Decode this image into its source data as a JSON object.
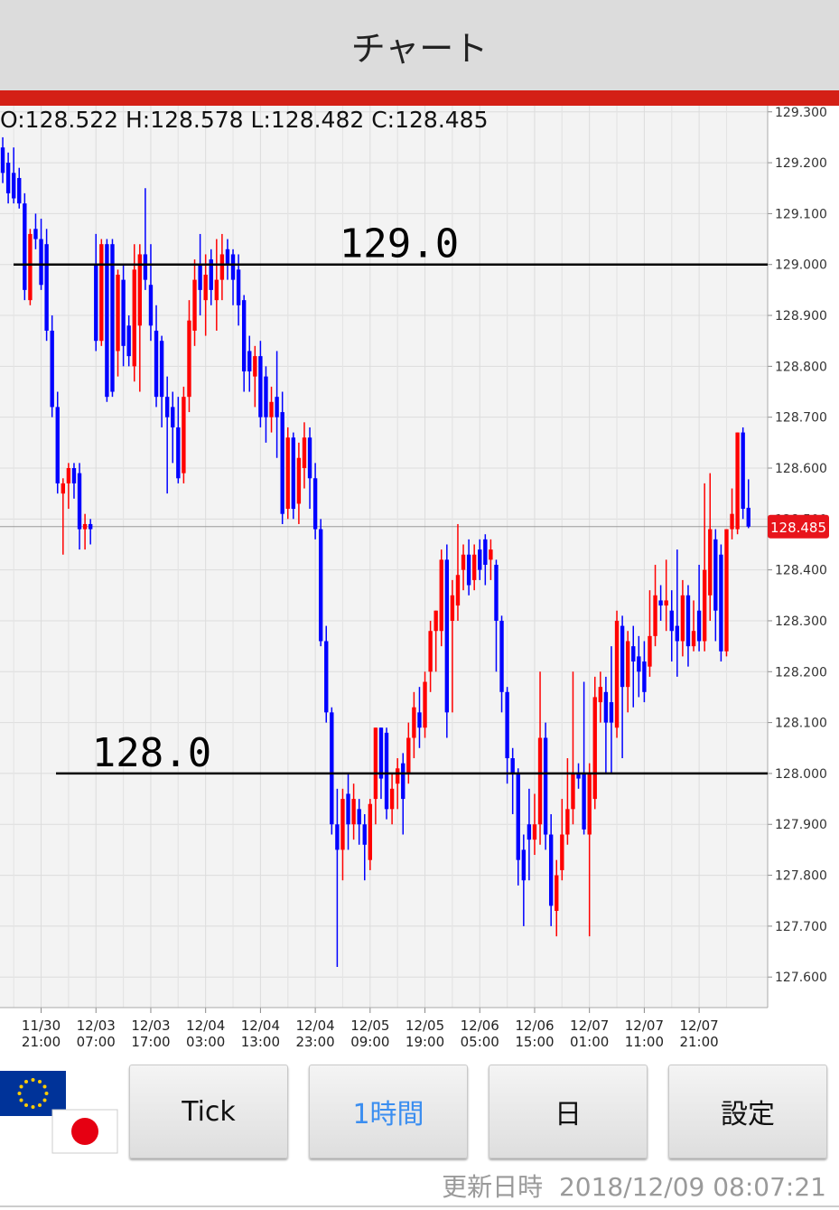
{
  "header": {
    "title": "チャート"
  },
  "ohlc_text": "O:128.522 H:128.578 L:128.482 C:128.485",
  "buttons": [
    "Tick",
    "1時間",
    "日",
    "設定"
  ],
  "active_button": 1,
  "footer": {
    "label": "更新日時",
    "timestamp": "2018/12/09 08:07:21"
  },
  "chart_data": {
    "type": "candlestick",
    "up_color": "#ff0000",
    "down_color": "#0000ff",
    "xlim": [
      -0.5,
      139.5
    ],
    "xticks": [
      {
        "value": 7,
        "label": "11/30 21:00"
      },
      {
        "value": 17,
        "label": "12/03 07:00"
      },
      {
        "value": 27,
        "label": "12/03 17:00"
      },
      {
        "value": 37,
        "label": "12/04 03:00"
      },
      {
        "value": 47,
        "label": "12/04 13:00"
      },
      {
        "value": 57,
        "label": "12/04 23:00"
      },
      {
        "value": 67,
        "label": "12/05 09:00"
      },
      {
        "value": 77,
        "label": "12/05 19:00"
      },
      {
        "value": 87,
        "label": "12/06 05:00"
      },
      {
        "value": 97,
        "label": "12/06 15:00"
      },
      {
        "value": 107,
        "label": "12/07 01:00"
      },
      {
        "value": 117,
        "label": "12/07 11:00"
      },
      {
        "value": 127,
        "label": "12/07 21:00"
      }
    ],
    "ylim": [
      127.54,
      129.312
    ],
    "yticks": [
      {
        "value": 127.6,
        "label": "127.600"
      },
      {
        "value": 127.7,
        "label": "127.700"
      },
      {
        "value": 127.8,
        "label": "127.800"
      },
      {
        "value": 127.9,
        "label": "127.900"
      },
      {
        "value": 128.0,
        "label": "128.000"
      },
      {
        "value": 128.1,
        "label": "128.100"
      },
      {
        "value": 128.2,
        "label": "128.200"
      },
      {
        "value": 128.3,
        "label": "128.300"
      },
      {
        "value": 128.4,
        "label": "128.400"
      },
      {
        "value": 128.5,
        "label": "128.500"
      },
      {
        "value": 128.6,
        "label": "128.600"
      },
      {
        "value": 128.7,
        "label": "128.700"
      },
      {
        "value": 128.8,
        "label": "128.800"
      },
      {
        "value": 128.9,
        "label": "128.900"
      },
      {
        "value": 129.0,
        "label": "129.000"
      },
      {
        "value": 129.1,
        "label": "129.100"
      },
      {
        "value": 129.2,
        "label": "129.200"
      },
      {
        "value": 129.3,
        "label": "129.300"
      }
    ],
    "grid": true,
    "hlines": [
      {
        "value": 129.0,
        "label": "129.0"
      },
      {
        "value": 128.0,
        "label": "128.0"
      }
    ],
    "last_price": 128.485,
    "candles": [
      [
        129.23,
        129.25,
        129.16,
        129.18
      ],
      [
        129.2,
        129.22,
        129.12,
        129.14
      ],
      [
        129.18,
        129.23,
        129.12,
        129.13
      ],
      [
        129.17,
        129.19,
        129.11,
        129.12
      ],
      [
        129.12,
        129.14,
        128.93,
        128.95
      ],
      [
        128.93,
        129.07,
        128.92,
        129.06
      ],
      [
        129.07,
        129.1,
        129.03,
        129.05
      ],
      [
        129.05,
        129.09,
        128.95,
        128.96
      ],
      [
        129.04,
        129.07,
        128.85,
        128.87
      ],
      [
        128.87,
        128.9,
        128.7,
        128.72
      ],
      [
        128.72,
        128.75,
        128.55,
        128.57
      ],
      [
        128.55,
        128.58,
        128.43,
        128.57
      ],
      [
        128.57,
        128.61,
        128.52,
        128.6
      ],
      [
        128.6,
        128.61,
        128.54,
        128.57
      ],
      [
        128.59,
        128.61,
        128.44,
        128.48
      ],
      [
        128.48,
        128.51,
        128.44,
        128.49
      ],
      [
        128.49,
        128.5,
        128.45,
        128.48
      ],
      [
        129.0,
        129.06,
        128.83,
        128.85
      ],
      [
        128.85,
        129.05,
        128.84,
        129.04
      ],
      [
        129.04,
        129.05,
        128.73,
        128.74
      ],
      [
        129.04,
        129.05,
        128.74,
        128.75
      ],
      [
        128.83,
        128.99,
        128.78,
        128.98
      ],
      [
        128.97,
        129.0,
        128.8,
        128.84
      ],
      [
        128.88,
        128.9,
        128.8,
        128.82
      ],
      [
        128.8,
        129.04,
        128.77,
        128.99
      ],
      [
        128.88,
        129.04,
        128.75,
        129.02
      ],
      [
        129.02,
        129.15,
        128.95,
        128.97
      ],
      [
        128.96,
        129.04,
        128.85,
        128.88
      ],
      [
        128.87,
        128.92,
        128.72,
        128.74
      ],
      [
        128.85,
        128.86,
        128.68,
        128.74
      ],
      [
        128.74,
        128.78,
        128.55,
        128.7
      ],
      [
        128.72,
        128.75,
        128.61,
        128.68
      ],
      [
        128.68,
        128.74,
        128.57,
        128.58
      ],
      [
        128.59,
        128.76,
        128.57,
        128.74
      ],
      [
        128.74,
        128.93,
        128.71,
        128.89
      ],
      [
        128.87,
        129.01,
        128.84,
        128.97
      ],
      [
        129.0,
        129.06,
        128.9,
        128.95
      ],
      [
        128.93,
        129.02,
        128.86,
        128.98
      ],
      [
        129.01,
        129.03,
        128.92,
        128.95
      ],
      [
        128.93,
        129.05,
        128.87,
        128.97
      ],
      [
        128.97,
        129.06,
        128.93,
        129.02
      ],
      [
        129.03,
        129.05,
        128.97,
        129.0
      ],
      [
        129.02,
        129.03,
        128.92,
        128.97
      ],
      [
        128.99,
        129.02,
        128.88,
        128.92
      ],
      [
        128.93,
        128.94,
        128.75,
        128.79
      ],
      [
        128.83,
        128.86,
        128.75,
        128.79
      ],
      [
        128.78,
        128.84,
        128.72,
        128.82
      ],
      [
        128.82,
        128.85,
        128.68,
        128.7
      ],
      [
        128.78,
        128.8,
        128.65,
        128.7
      ],
      [
        128.7,
        128.76,
        128.67,
        128.73
      ],
      [
        128.74,
        128.83,
        128.62,
        128.7
      ],
      [
        128.71,
        128.75,
        128.49,
        128.51
      ],
      [
        128.52,
        128.68,
        128.5,
        128.66
      ],
      [
        128.66,
        128.67,
        128.5,
        128.52
      ],
      [
        128.53,
        128.65,
        128.49,
        128.62
      ],
      [
        128.6,
        128.69,
        128.56,
        128.66
      ],
      [
        128.66,
        128.68,
        128.52,
        128.58
      ],
      [
        128.58,
        128.61,
        128.46,
        128.48
      ],
      [
        128.48,
        128.5,
        128.25,
        128.26
      ],
      [
        128.26,
        128.29,
        128.1,
        128.12
      ],
      [
        128.12,
        128.13,
        127.88,
        127.9
      ],
      [
        127.9,
        127.97,
        127.62,
        127.85
      ],
      [
        127.85,
        127.97,
        127.79,
        127.95
      ],
      [
        127.96,
        128.0,
        127.85,
        127.9
      ],
      [
        127.9,
        127.98,
        127.87,
        127.95
      ],
      [
        127.93,
        127.95,
        127.86,
        127.9
      ],
      [
        127.9,
        127.92,
        127.79,
        127.86
      ],
      [
        127.83,
        127.95,
        127.81,
        127.94
      ],
      [
        127.95,
        128.09,
        127.9,
        128.09
      ],
      [
        128.09,
        128.09,
        127.95,
        127.99
      ],
      [
        128.08,
        128.09,
        127.91,
        127.93
      ],
      [
        127.93,
        128.0,
        127.9,
        127.97
      ],
      [
        127.98,
        128.03,
        127.93,
        128.01
      ],
      [
        128.02,
        128.04,
        127.88,
        127.95
      ],
      [
        128.0,
        128.1,
        127.98,
        128.07
      ],
      [
        128.07,
        128.16,
        128.03,
        128.13
      ],
      [
        128.12,
        128.17,
        128.05,
        128.09
      ],
      [
        128.09,
        128.2,
        128.07,
        128.18
      ],
      [
        128.2,
        128.3,
        128.16,
        128.28
      ],
      [
        128.28,
        128.32,
        128.2,
        128.32
      ],
      [
        128.28,
        128.44,
        128.25,
        128.42
      ],
      [
        128.42,
        128.45,
        128.07,
        128.12
      ],
      [
        128.3,
        128.38,
        128.12,
        128.35
      ],
      [
        128.33,
        128.49,
        128.3,
        128.39
      ],
      [
        128.4,
        128.45,
        128.36,
        128.43
      ],
      [
        128.43,
        128.46,
        128.35,
        128.37
      ],
      [
        128.38,
        128.45,
        128.36,
        128.43
      ],
      [
        128.44,
        128.46,
        128.38,
        128.4
      ],
      [
        128.46,
        128.47,
        128.37,
        128.41
      ],
      [
        128.42,
        128.46,
        128.38,
        128.44
      ],
      [
        128.41,
        128.42,
        128.2,
        128.3
      ],
      [
        128.3,
        128.31,
        128.12,
        128.16
      ],
      [
        128.16,
        128.17,
        127.98,
        128.03
      ],
      [
        128.03,
        128.05,
        127.92,
        128.0
      ],
      [
        128.0,
        128.01,
        127.78,
        127.83
      ],
      [
        127.85,
        127.88,
        127.7,
        127.79
      ],
      [
        127.9,
        127.97,
        127.79,
        127.87
      ],
      [
        127.87,
        127.96,
        127.84,
        127.9
      ],
      [
        127.9,
        128.2,
        127.86,
        128.07
      ],
      [
        128.07,
        128.1,
        127.85,
        127.88
      ],
      [
        127.88,
        127.92,
        127.7,
        127.74
      ],
      [
        127.73,
        127.83,
        127.68,
        127.8
      ],
      [
        127.81,
        127.95,
        127.79,
        127.88
      ],
      [
        127.88,
        128.03,
        127.86,
        127.93
      ],
      [
        127.93,
        128.2,
        127.9,
        128.0
      ],
      [
        128.0,
        128.02,
        127.97,
        127.99
      ],
      [
        128.0,
        128.18,
        127.88,
        127.89
      ],
      [
        127.88,
        128.02,
        127.68,
        128.0
      ],
      [
        127.95,
        128.19,
        127.93,
        128.15
      ],
      [
        128.14,
        128.2,
        128.1,
        128.17
      ],
      [
        128.16,
        128.19,
        128.0,
        128.1
      ],
      [
        128.14,
        128.25,
        128.0,
        128.1
      ],
      [
        128.09,
        128.32,
        128.07,
        128.3
      ],
      [
        128.29,
        128.31,
        128.03,
        128.17
      ],
      [
        128.17,
        128.28,
        128.12,
        128.26
      ],
      [
        128.25,
        128.29,
        128.13,
        128.22
      ],
      [
        128.23,
        128.27,
        128.15,
        128.2
      ],
      [
        128.22,
        128.26,
        128.14,
        128.16
      ],
      [
        128.21,
        128.36,
        128.19,
        128.27
      ],
      [
        128.27,
        128.41,
        128.25,
        128.35
      ],
      [
        128.34,
        128.37,
        128.3,
        128.33
      ],
      [
        128.33,
        128.42,
        128.28,
        128.34
      ],
      [
        128.32,
        128.36,
        128.22,
        128.28
      ],
      [
        128.29,
        128.44,
        128.19,
        128.26
      ],
      [
        128.26,
        128.38,
        128.23,
        128.35
      ],
      [
        128.35,
        128.37,
        128.21,
        128.25
      ],
      [
        128.25,
        128.34,
        128.24,
        128.28
      ],
      [
        128.32,
        128.41,
        128.24,
        128.26
      ],
      [
        128.26,
        128.57,
        128.24,
        128.4
      ],
      [
        128.35,
        128.59,
        128.3,
        128.48
      ],
      [
        128.46,
        128.48,
        128.26,
        128.32
      ],
      [
        128.43,
        128.45,
        128.22,
        128.24
      ],
      [
        128.24,
        128.48,
        128.23,
        128.48
      ],
      [
        128.48,
        128.56,
        128.46,
        128.51
      ],
      [
        128.48,
        128.67,
        128.47,
        128.67
      ],
      [
        128.67,
        128.68,
        128.5,
        128.52
      ],
      [
        128.522,
        128.578,
        128.482,
        128.485
      ]
    ]
  }
}
